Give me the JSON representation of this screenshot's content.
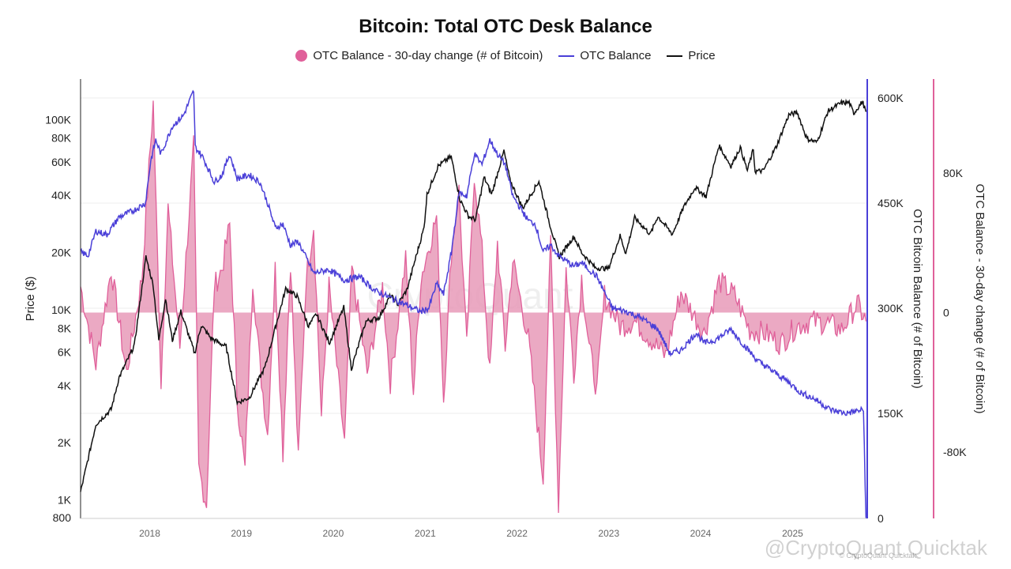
{
  "chart_data": {
    "type": "line",
    "title": "Bitcoin: Total OTC Desk Balance",
    "legend_position": "top",
    "grid": true,
    "colors": {
      "change": "#e0609a",
      "balance": "#4a3fd8",
      "price": "#111111"
    },
    "legend": [
      {
        "key": "change",
        "label": "OTC Balance - 30-day change (# of Bitcoin)",
        "marker": "dot"
      },
      {
        "key": "balance",
        "label": "OTC Balance",
        "marker": "line"
      },
      {
        "key": "price",
        "label": "Price",
        "marker": "line"
      }
    ],
    "x_range": [
      "2017-04-01",
      "2025-10-25"
    ],
    "x_ticks": [
      "2018",
      "2019",
      "2020",
      "2021",
      "2022",
      "2023",
      "2024",
      "2025"
    ],
    "axes": {
      "price": {
        "label": "Price ($)",
        "scale": "log",
        "range": [
          800,
          130000
        ],
        "ticks": [
          {
            "v": 1000,
            "t": "1K"
          },
          {
            "v": 2000,
            "t": "2K"
          },
          {
            "v": 4000,
            "t": "4K"
          },
          {
            "v": 6000,
            "t": "6K"
          },
          {
            "v": 8000,
            "t": "8K"
          },
          {
            "v": 10000,
            "t": "10K"
          },
          {
            "v": 20000,
            "t": "20K"
          },
          {
            "v": 40000,
            "t": "40K"
          },
          {
            "v": 60000,
            "t": "60K"
          },
          {
            "v": 80000,
            "t": "80K"
          },
          {
            "v": 100000,
            "t": "100K"
          }
        ],
        "bottom_label": "800"
      },
      "balance": {
        "label": "OTC Bitcoin Balance (# of Bitcoin)",
        "range": [
          0,
          600000
        ],
        "ticks": [
          {
            "v": 0,
            "t": "0"
          },
          {
            "v": 150000,
            "t": "150K"
          },
          {
            "v": 300000,
            "t": "300K"
          },
          {
            "v": 450000,
            "t": "450K"
          },
          {
            "v": 600000,
            "t": "600K"
          }
        ]
      },
      "change": {
        "label": "OTC Balance - 30-day change (# of Bitcoin)",
        "range": [
          -118000,
          123000
        ],
        "ticks": [
          {
            "v": -80000,
            "t": "-80K"
          },
          {
            "v": 0,
            "t": "0"
          },
          {
            "v": 80000,
            "t": "80K"
          }
        ]
      }
    },
    "series": [
      {
        "name": "Price",
        "axis": "price",
        "points": [
          [
            "2017-04-01",
            1100
          ],
          [
            "2017-06-01",
            2500
          ],
          [
            "2017-08-01",
            3000
          ],
          [
            "2017-09-01",
            4400
          ],
          [
            "2017-11-01",
            6500
          ],
          [
            "2017-12-17",
            19000
          ],
          [
            "2018-01-15",
            13500
          ],
          [
            "2018-02-06",
            6900
          ],
          [
            "2018-03-05",
            11500
          ],
          [
            "2018-04-01",
            6900
          ],
          [
            "2018-05-05",
            9800
          ],
          [
            "2018-06-29",
            5900
          ],
          [
            "2018-07-25",
            8300
          ],
          [
            "2018-09-01",
            7100
          ],
          [
            "2018-11-01",
            6400
          ],
          [
            "2018-12-15",
            3250
          ],
          [
            "2019-02-01",
            3450
          ],
          [
            "2019-04-05",
            5000
          ],
          [
            "2019-05-15",
            8000
          ],
          [
            "2019-06-26",
            12900
          ],
          [
            "2019-08-10",
            11800
          ],
          [
            "2019-09-25",
            8200
          ],
          [
            "2019-10-26",
            9500
          ],
          [
            "2019-12-17",
            6700
          ],
          [
            "2020-02-12",
            10300
          ],
          [
            "2020-03-13",
            4900
          ],
          [
            "2020-05-10",
            8700
          ],
          [
            "2020-07-01",
            9100
          ],
          [
            "2020-08-16",
            11900
          ],
          [
            "2020-09-15",
            10700
          ],
          [
            "2020-10-21",
            12800
          ],
          [
            "2020-11-25",
            19000
          ],
          [
            "2020-12-27",
            27000
          ],
          [
            "2021-01-08",
            40500
          ],
          [
            "2021-02-21",
            57000
          ],
          [
            "2021-04-14",
            64000
          ],
          [
            "2021-05-19",
            38000
          ],
          [
            "2021-06-22",
            31000
          ],
          [
            "2021-07-20",
            29800
          ],
          [
            "2021-08-23",
            49800
          ],
          [
            "2021-09-22",
            40500
          ],
          [
            "2021-11-10",
            68500
          ],
          [
            "2021-12-04",
            48000
          ],
          [
            "2022-01-24",
            34300
          ],
          [
            "2022-03-29",
            47500
          ],
          [
            "2022-05-12",
            28000
          ],
          [
            "2022-06-18",
            19000
          ],
          [
            "2022-08-15",
            24300
          ],
          [
            "2022-09-15",
            20000
          ],
          [
            "2022-11-09",
            16600
          ],
          [
            "2022-12-31",
            16500
          ],
          [
            "2023-02-15",
            24500
          ],
          [
            "2023-03-10",
            19800
          ],
          [
            "2023-04-14",
            30500
          ],
          [
            "2023-06-15",
            25000
          ],
          [
            "2023-07-15",
            31000
          ],
          [
            "2023-09-11",
            25000
          ],
          [
            "2023-10-25",
            34500
          ],
          [
            "2023-12-10",
            44000
          ],
          [
            "2024-01-23",
            39500
          ],
          [
            "2024-03-14",
            73000
          ],
          [
            "2024-05-01",
            57000
          ],
          [
            "2024-06-07",
            71500
          ],
          [
            "2024-07-05",
            54000
          ],
          [
            "2024-07-29",
            69800
          ],
          [
            "2024-08-05",
            53500
          ],
          [
            "2024-09-06",
            53800
          ],
          [
            "2024-10-29",
            72500
          ],
          [
            "2024-12-17",
            106000
          ],
          [
            "2025-01-20",
            109000
          ],
          [
            "2025-02-27",
            79500
          ],
          [
            "2025-04-08",
            76000
          ],
          [
            "2025-05-22",
            111000
          ],
          [
            "2025-07-14",
            122500
          ],
          [
            "2025-08-14",
            123000
          ],
          [
            "2025-09-01",
            108000
          ],
          [
            "2025-10-06",
            124500
          ],
          [
            "2025-10-20",
            110000
          ]
        ]
      },
      {
        "name": "OTC Balance",
        "axis": "balance",
        "points": [
          [
            "2017-04-01",
            380000
          ],
          [
            "2017-05-01",
            375000
          ],
          [
            "2017-06-01",
            410000
          ],
          [
            "2017-07-15",
            405000
          ],
          [
            "2017-09-01",
            430000
          ],
          [
            "2017-11-01",
            440000
          ],
          [
            "2017-12-15",
            450000
          ],
          [
            "2018-01-05",
            510000
          ],
          [
            "2018-01-25",
            540000
          ],
          [
            "2018-02-15",
            520000
          ],
          [
            "2018-04-01",
            560000
          ],
          [
            "2018-05-15",
            575000
          ],
          [
            "2018-06-25",
            610000
          ],
          [
            "2018-07-01",
            530000
          ],
          [
            "2018-08-01",
            515000
          ],
          [
            "2018-09-15",
            480000
          ],
          [
            "2018-10-15",
            490000
          ],
          [
            "2018-11-15",
            520000
          ],
          [
            "2018-12-15",
            485000
          ],
          [
            "2019-02-01",
            490000
          ],
          [
            "2019-03-15",
            480000
          ],
          [
            "2019-04-15",
            450000
          ],
          [
            "2019-05-15",
            415000
          ],
          [
            "2019-06-15",
            420000
          ],
          [
            "2019-07-15",
            390000
          ],
          [
            "2019-08-15",
            395000
          ],
          [
            "2019-10-15",
            350000
          ],
          [
            "2019-12-15",
            355000
          ],
          [
            "2020-02-15",
            340000
          ],
          [
            "2020-04-15",
            345000
          ],
          [
            "2020-06-15",
            325000
          ],
          [
            "2020-08-15",
            315000
          ],
          [
            "2020-10-15",
            305000
          ],
          [
            "2020-12-15",
            295000
          ],
          [
            "2021-01-15",
            300000
          ],
          [
            "2021-02-15",
            335000
          ],
          [
            "2021-03-15",
            320000
          ],
          [
            "2021-04-15",
            380000
          ],
          [
            "2021-05-15",
            465000
          ],
          [
            "2021-06-15",
            460000
          ],
          [
            "2021-07-15",
            520000
          ],
          [
            "2021-08-15",
            505000
          ],
          [
            "2021-09-15",
            540000
          ],
          [
            "2021-10-15",
            520000
          ],
          [
            "2021-11-15",
            505000
          ],
          [
            "2021-12-15",
            460000
          ],
          [
            "2022-02-15",
            425000
          ],
          [
            "2022-03-15",
            420000
          ],
          [
            "2022-04-15",
            380000
          ],
          [
            "2022-05-15",
            390000
          ],
          [
            "2022-06-15",
            375000
          ],
          [
            "2022-08-15",
            360000
          ],
          [
            "2022-09-15",
            365000
          ],
          [
            "2022-10-15",
            355000
          ],
          [
            "2022-11-15",
            345000
          ],
          [
            "2023-01-15",
            300000
          ],
          [
            "2023-03-15",
            295000
          ],
          [
            "2023-05-15",
            285000
          ],
          [
            "2023-07-15",
            270000
          ],
          [
            "2023-09-01",
            235000
          ],
          [
            "2023-10-15",
            240000
          ],
          [
            "2023-12-15",
            265000
          ],
          [
            "2024-01-15",
            250000
          ],
          [
            "2024-03-01",
            255000
          ],
          [
            "2024-05-01",
            270000
          ],
          [
            "2024-06-15",
            250000
          ],
          [
            "2024-08-15",
            225000
          ],
          [
            "2024-10-15",
            210000
          ],
          [
            "2024-12-15",
            195000
          ],
          [
            "2025-02-01",
            180000
          ],
          [
            "2025-04-01",
            170000
          ],
          [
            "2025-06-01",
            155000
          ],
          [
            "2025-08-01",
            150000
          ],
          [
            "2025-10-10",
            155000
          ],
          [
            "2025-10-20",
            0
          ]
        ]
      },
      {
        "name": "OTC Balance - 30-day change",
        "axis": "change",
        "points": [
          [
            "2017-04-01",
            15000
          ],
          [
            "2017-06-01",
            -30000
          ],
          [
            "2017-08-01",
            25000
          ],
          [
            "2017-10-01",
            -35000
          ],
          [
            "2017-12-01",
            20000
          ],
          [
            "2018-01-15",
            120000
          ],
          [
            "2018-02-15",
            -40000
          ],
          [
            "2018-03-15",
            60000
          ],
          [
            "2018-05-01",
            -20000
          ],
          [
            "2018-06-25",
            95000
          ],
          [
            "2018-07-15",
            -90000
          ],
          [
            "2018-08-15",
            -110000
          ],
          [
            "2018-09-15",
            15000
          ],
          [
            "2018-10-15",
            25000
          ],
          [
            "2018-11-15",
            50000
          ],
          [
            "2018-12-15",
            -50000
          ],
          [
            "2019-01-15",
            -90000
          ],
          [
            "2019-02-15",
            20000
          ],
          [
            "2019-03-15",
            -30000
          ],
          [
            "2019-04-15",
            -70000
          ],
          [
            "2019-05-15",
            25000
          ],
          [
            "2019-06-15",
            -80000
          ],
          [
            "2019-07-15",
            30000
          ],
          [
            "2019-08-15",
            -85000
          ],
          [
            "2019-09-15",
            20000
          ],
          [
            "2019-10-15",
            50000
          ],
          [
            "2019-11-15",
            -60000
          ],
          [
            "2019-12-15",
            15000
          ],
          [
            "2020-02-15",
            -75000
          ],
          [
            "2020-03-15",
            25000
          ],
          [
            "2020-05-15",
            -35000
          ],
          [
            "2020-07-15",
            15000
          ],
          [
            "2020-08-15",
            -40000
          ],
          [
            "2020-10-15",
            30000
          ],
          [
            "2020-11-15",
            -45000
          ],
          [
            "2020-12-15",
            20000
          ],
          [
            "2021-02-15",
            55000
          ],
          [
            "2021-03-15",
            -50000
          ],
          [
            "2021-04-15",
            35000
          ],
          [
            "2021-05-15",
            70000
          ],
          [
            "2021-06-15",
            -20000
          ],
          [
            "2021-07-15",
            80000
          ],
          [
            "2021-08-15",
            35000
          ],
          [
            "2021-09-15",
            -35000
          ],
          [
            "2021-10-15",
            40000
          ],
          [
            "2021-11-15",
            -20000
          ],
          [
            "2021-12-15",
            30000
          ],
          [
            "2022-02-15",
            -15000
          ],
          [
            "2022-04-15",
            -95000
          ],
          [
            "2022-05-15",
            40000
          ],
          [
            "2022-06-15",
            -110000
          ],
          [
            "2022-07-15",
            25000
          ],
          [
            "2022-08-15",
            -35000
          ],
          [
            "2022-09-15",
            20000
          ],
          [
            "2022-10-15",
            -20000
          ],
          [
            "2022-11-15",
            -45000
          ],
          [
            "2022-12-15",
            10000
          ],
          [
            "2023-02-15",
            -8000
          ],
          [
            "2023-04-15",
            -5000
          ],
          [
            "2023-06-15",
            -15000
          ],
          [
            "2023-08-15",
            -25000
          ],
          [
            "2023-10-15",
            12000
          ],
          [
            "2024-01-15",
            -12000
          ],
          [
            "2024-03-15",
            18000
          ],
          [
            "2024-05-15",
            10000
          ],
          [
            "2024-07-15",
            -10000
          ],
          [
            "2024-09-15",
            -12000
          ],
          [
            "2024-11-15",
            -18000
          ],
          [
            "2025-01-15",
            -8000
          ],
          [
            "2025-03-15",
            -5000
          ],
          [
            "2025-05-15",
            -6000
          ],
          [
            "2025-07-15",
            -10000
          ],
          [
            "2025-09-15",
            5000
          ],
          [
            "2025-10-20",
            -5000
          ]
        ]
      }
    ]
  },
  "watermark": {
    "center": "CryptoQuant",
    "corner": "@CryptoQuant Quicktak",
    "corner_small": "© CryptoQuant Quicktak"
  }
}
